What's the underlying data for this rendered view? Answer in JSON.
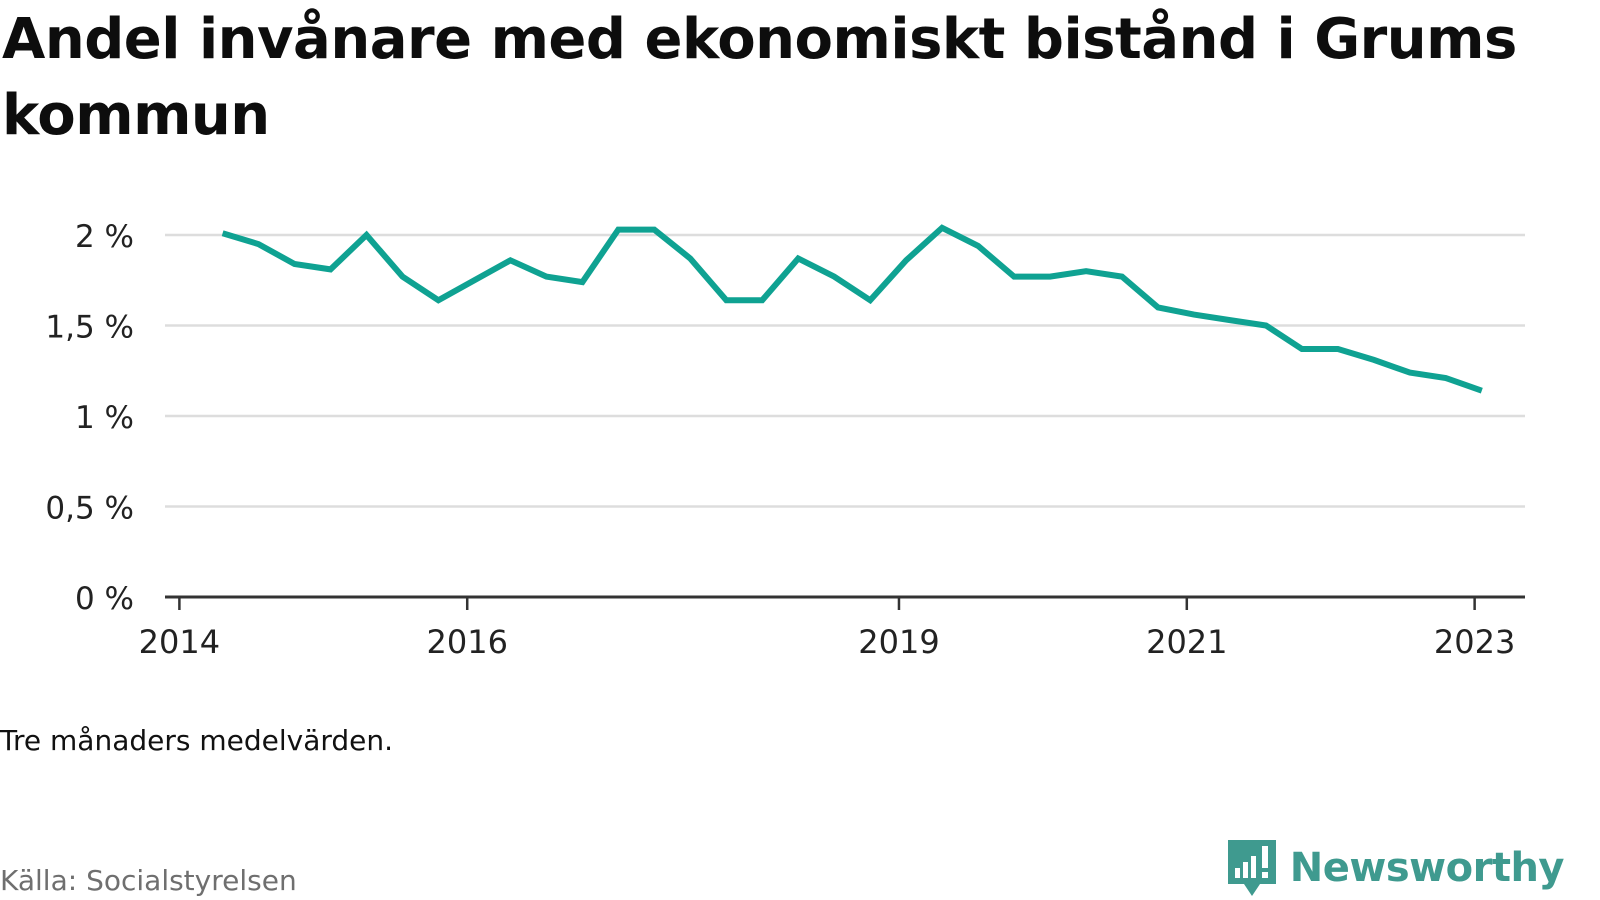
{
  "title": "Andel invånare med ekonomiskt bistånd i Grums kommun",
  "note": "Tre månaders medelvärden.",
  "source": "Källa: Socialstyrelsen",
  "brand": {
    "name": "Newsworthy",
    "icon": "newsworthy-logo-icon",
    "color": "#3f9a8f"
  },
  "colors": {
    "line": "#0fa292",
    "grid": "#dddddd",
    "axis": "#333333"
  },
  "chart_data": {
    "type": "line",
    "title": "Andel invånare med ekonomiskt bistånd i Grums kommun",
    "xlabel": "",
    "ylabel": "",
    "x_unit": "year",
    "xlim": [
      2013.9,
      2023.35
    ],
    "ylim": [
      0,
      2
    ],
    "y_ticks": [
      0,
      0.5,
      1,
      1.5,
      2
    ],
    "y_tick_labels": [
      "0 %",
      "0,5 %",
      "1 %",
      "1,5 %",
      "2 %"
    ],
    "x_ticks": [
      2014,
      2016,
      2019,
      2021,
      2023
    ],
    "x_tick_labels": [
      "2014",
      "2016",
      "2019",
      "2021",
      "2023"
    ],
    "grid": true,
    "series": [
      {
        "x": [
          2014.3,
          2014.55,
          2014.8,
          2015.05,
          2015.3,
          2015.55,
          2015.8,
          2016.05,
          2016.3,
          2016.55,
          2016.8,
          2017.05,
          2017.3,
          2017.55,
          2017.8,
          2018.05,
          2018.3,
          2018.55,
          2018.8,
          2019.05,
          2019.3,
          2019.55,
          2019.8,
          2020.05,
          2020.3,
          2020.55,
          2020.8,
          2021.05,
          2021.3,
          2021.55,
          2021.8,
          2022.05,
          2022.3,
          2022.55,
          2022.8,
          2023.05
        ],
        "values": [
          2.01,
          1.95,
          1.84,
          1.81,
          2.0,
          1.77,
          1.64,
          1.75,
          1.86,
          1.77,
          1.74,
          2.03,
          2.03,
          1.87,
          1.64,
          1.64,
          1.87,
          1.77,
          1.64,
          1.86,
          2.04,
          1.94,
          1.77,
          1.77,
          1.8,
          1.77,
          1.6,
          1.56,
          1.53,
          1.5,
          1.37,
          1.37,
          1.31,
          1.24,
          1.21,
          1.14
        ]
      }
    ]
  }
}
